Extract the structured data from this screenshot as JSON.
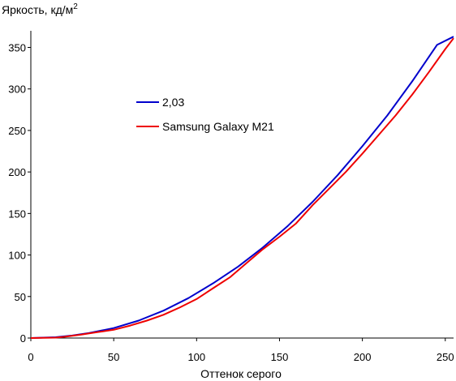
{
  "chart_data": {
    "type": "line",
    "ylabel": "Яркость, кд/м",
    "ylabel_sup": "2",
    "xlabel": "Оттенок серого",
    "xlim": [
      0,
      255
    ],
    "ylim": [
      0,
      370
    ],
    "x_ticks": [
      "0",
      "50",
      "100",
      "150",
      "200",
      "250"
    ],
    "y_ticks": [
      "0",
      "50",
      "100",
      "150",
      "200",
      "250",
      "300",
      "350"
    ],
    "grid": false,
    "legend_position": "upper-left inside plot",
    "series": [
      {
        "name": "2,03",
        "color": "#0000cc",
        "gamma": 2.03,
        "max": 363,
        "x": [
          0,
          15,
          25,
          35,
          50,
          65,
          80,
          95,
          110,
          125,
          140,
          155,
          170,
          185,
          200,
          215,
          230,
          245,
          255
        ],
        "y": [
          0,
          1,
          3,
          6,
          12,
          21,
          33,
          48,
          66,
          86,
          109,
          135,
          164,
          196,
          231,
          268,
          309,
          353,
          363
        ]
      },
      {
        "name": "Samsung Galaxy M21",
        "color": "#ee0000",
        "x": [
          0,
          15,
          20,
          30,
          40,
          50,
          60,
          70,
          80,
          90,
          100,
          110,
          120,
          130,
          140,
          150,
          160,
          170,
          180,
          190,
          200,
          210,
          220,
          230,
          240,
          250,
          255
        ],
        "y": [
          0,
          0.5,
          1.5,
          4,
          7,
          10,
          15,
          21,
          28,
          37,
          47,
          60,
          73,
          90,
          107,
          122,
          138,
          160,
          180,
          200,
          222,
          245,
          268,
          293,
          320,
          348,
          361
        ]
      }
    ]
  }
}
